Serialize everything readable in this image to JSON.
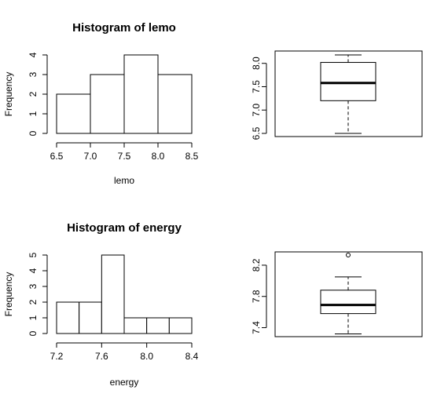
{
  "chart_data": [
    {
      "type": "histogram",
      "title": "Histogram of lemo",
      "xlabel": "lemo",
      "ylabel": "Frequency",
      "bins": [
        [
          6.5,
          7.0
        ],
        [
          7.0,
          7.5
        ],
        [
          7.5,
          8.0
        ],
        [
          8.0,
          8.5
        ]
      ],
      "values": [
        2,
        3,
        4,
        3
      ],
      "xticks": [
        "6.5",
        "7.0",
        "7.5",
        "8.0",
        "8.5"
      ],
      "yticks": [
        "0",
        "1",
        "2",
        "3",
        "4"
      ],
      "xlim": [
        6.5,
        8.5
      ],
      "ylim": [
        0,
        4
      ]
    },
    {
      "type": "boxplot",
      "series": "lemo",
      "stats": {
        "min": 6.5,
        "q1": 7.2,
        "median": 7.58,
        "q3": 8.02,
        "max": 8.18
      },
      "outliers": [],
      "yticks": [
        "6.5",
        "7.0",
        "7.5",
        "8.0"
      ],
      "ylim": [
        6.5,
        8.18
      ]
    },
    {
      "type": "histogram",
      "title": "Histogram of energy",
      "xlabel": "energy",
      "ylabel": "Frequency",
      "bins": [
        [
          7.2,
          7.4
        ],
        [
          7.4,
          7.6
        ],
        [
          7.6,
          7.8
        ],
        [
          7.8,
          8.0
        ],
        [
          8.0,
          8.2
        ],
        [
          8.2,
          8.4
        ]
      ],
      "values": [
        2,
        2,
        5,
        1,
        1,
        1
      ],
      "xticks": [
        "7.2",
        "7.6",
        "8.0",
        "8.4"
      ],
      "yticks": [
        "0",
        "1",
        "2",
        "3",
        "4",
        "5"
      ],
      "xlim": [
        7.2,
        8.4
      ],
      "ylim": [
        0,
        5
      ]
    },
    {
      "type": "boxplot",
      "series": "energy",
      "stats": {
        "min": 7.32,
        "q1": 7.58,
        "median": 7.69,
        "q3": 7.88,
        "max": 8.05
      },
      "outliers": [
        8.33
      ],
      "yticks": [
        "7.4",
        "7.8",
        "8.2"
      ],
      "ylim": [
        7.32,
        8.33
      ]
    }
  ]
}
